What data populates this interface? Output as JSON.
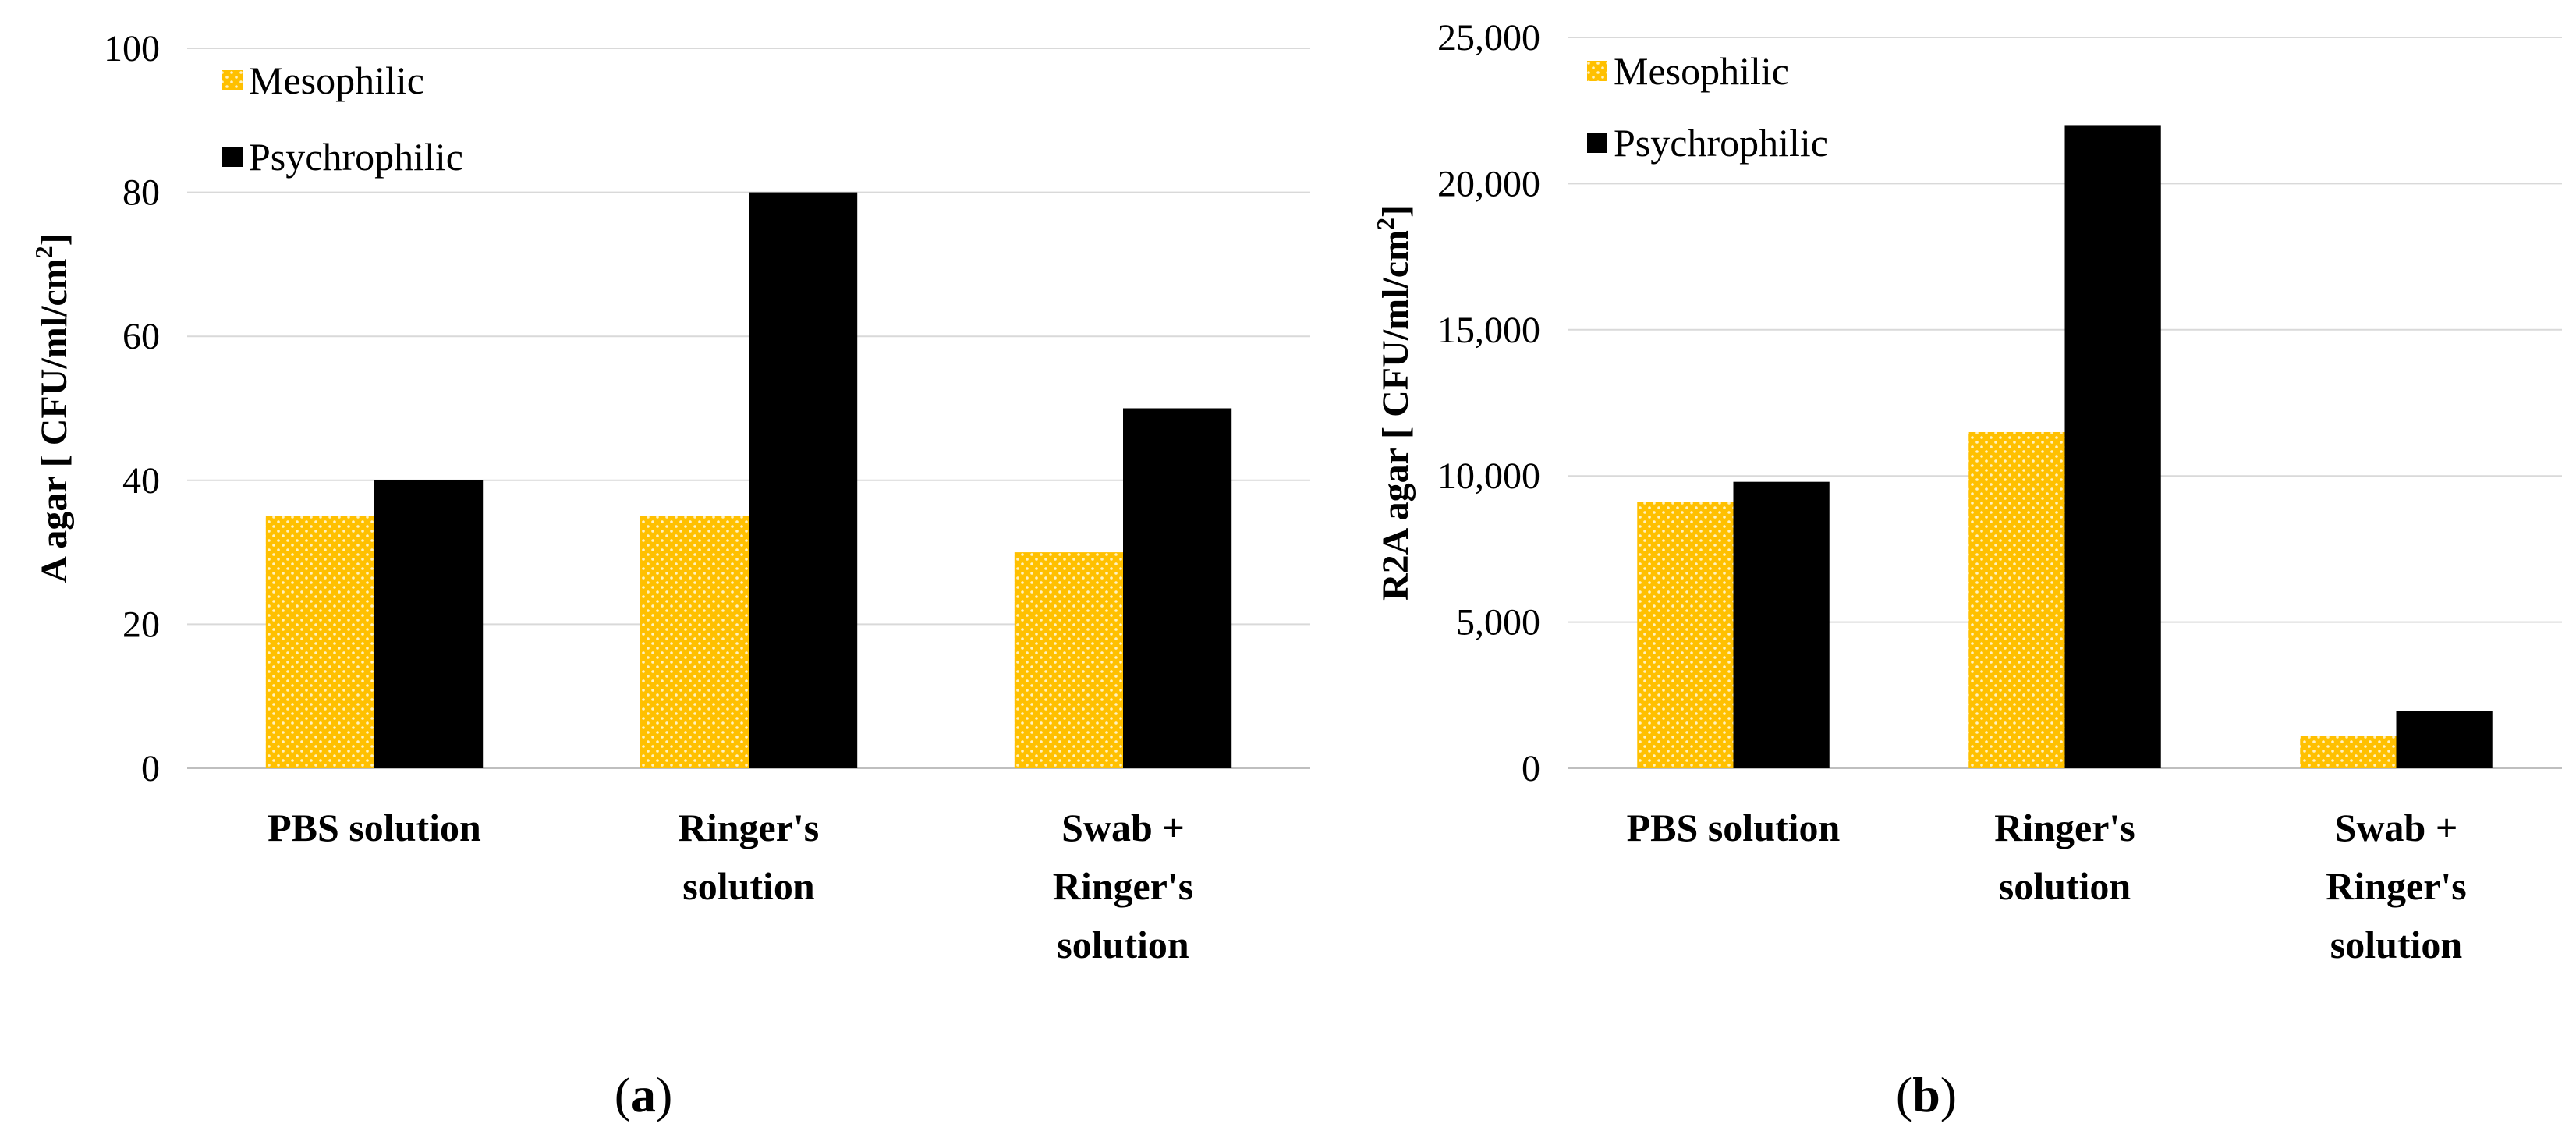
{
  "chart_data": [
    {
      "type": "bar",
      "panel_label_open": "(",
      "panel_label_letter": "a",
      "panel_label_close": ")",
      "ylabel_main": "A agar [ CFU/ml/cm",
      "ylabel_sup": "2",
      "ylabel_end": "]",
      "ylim": [
        0,
        100
      ],
      "yticks": [
        "0",
        "20",
        "40",
        "60",
        "80",
        "100"
      ],
      "grid": true,
      "legend_position": "top-left",
      "categories": [
        [
          "PBS solution"
        ],
        [
          "Ringer's",
          "solution"
        ],
        [
          "Swab +",
          "Ringer's",
          "solution"
        ]
      ],
      "series": [
        {
          "name": "Mesophilic",
          "values": [
            35,
            35,
            30
          ],
          "color": "#FFC000",
          "pattern": "dotted"
        },
        {
          "name": "Psychrophilic",
          "values": [
            40,
            80,
            50
          ],
          "color": "#000000",
          "pattern": "solid"
        }
      ]
    },
    {
      "type": "bar",
      "panel_label_open": "(",
      "panel_label_letter": "b",
      "panel_label_close": ")",
      "ylabel_main": "R2A agar [ CFU/ml/cm",
      "ylabel_sup": "2",
      "ylabel_end": "]",
      "ylim": [
        0,
        25000
      ],
      "yticks": [
        "0",
        "5,000",
        "10,000",
        "15,000",
        "20,000",
        "25,000"
      ],
      "grid": true,
      "legend_position": "top-left",
      "categories": [
        [
          "PBS solution"
        ],
        [
          "Ringer's",
          "solution"
        ],
        [
          "Swab +",
          "Ringer's",
          "solution"
        ]
      ],
      "series": [
        {
          "name": "Mesophilic",
          "values": [
            9100,
            11500,
            1100
          ],
          "color": "#FFC000",
          "pattern": "dotted"
        },
        {
          "name": "Psychrophilic",
          "values": [
            9800,
            22000,
            1950
          ],
          "color": "#000000",
          "pattern": "solid"
        }
      ]
    }
  ]
}
